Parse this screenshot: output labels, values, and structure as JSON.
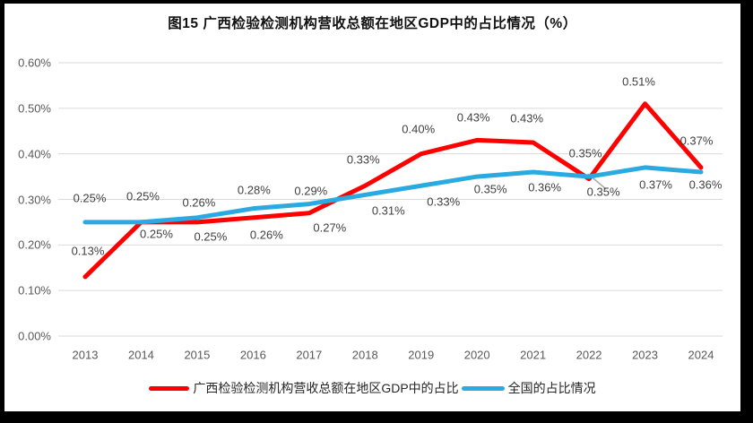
{
  "figure_title": "图15 广西检验检测机构营收总额在地区GDP中的占比情况（%）",
  "chart_data": {
    "type": "line",
    "title": "图15 广西检验检测机构营收总额在地区GDP中的占比情况（%）",
    "categories": [
      "2013",
      "2014",
      "2015",
      "2016",
      "2017",
      "2018",
      "2019",
      "2020",
      "2021",
      "2022",
      "2023",
      "2024"
    ],
    "yticks": [
      "0.00%",
      "0.10%",
      "0.20%",
      "0.30%",
      "0.40%",
      "0.50%",
      "0.60%"
    ],
    "ylim": [
      0,
      0.6
    ],
    "grid": "horizontal",
    "gridline_color": "#DADADA",
    "legend_position": "bottom",
    "series": [
      {
        "id": "guangxi",
        "name": "广西检验检测机构营收总额在地区GDP中的占比",
        "color": "#FF0000",
        "values": [
          0.13,
          0.25,
          0.25,
          0.26,
          0.27,
          0.33,
          0.4,
          0.43,
          0.425,
          0.345,
          0.51,
          0.37
        ],
        "labels": [
          "0.13%",
          "0.25%",
          "0.25%",
          "0.26%",
          "0.27%",
          "0.33%",
          "0.40%",
          "0.43%",
          "0.43%",
          "0.35%",
          "0.51%",
          "0.37%"
        ],
        "label_offsets": [
          [
            3,
            -29
          ],
          [
            17,
            13
          ],
          [
            15,
            16
          ],
          [
            15,
            19
          ],
          [
            23,
            16
          ],
          [
            -2,
            -29
          ],
          [
            -3,
            -28
          ],
          [
            -4,
            -25
          ],
          [
            -7,
            -27
          ],
          [
            -4,
            -29
          ],
          [
            -7,
            -25
          ],
          [
            -5,
            -30
          ]
        ]
      },
      {
        "id": "national",
        "name": "全国的占比情况",
        "color": "#29ABE2",
        "values": [
          0.25,
          0.25,
          0.26,
          0.28,
          0.29,
          0.31,
          0.33,
          0.35,
          0.36,
          0.35,
          0.37,
          0.36
        ],
        "labels": [
          "0.25%",
          "0.25%",
          "0.26%",
          "0.28%",
          "0.29%",
          "0.31%",
          "0.33%",
          "0.35%",
          "0.36%",
          "0.35%",
          "0.37%",
          "0.36%"
        ],
        "label_offsets": [
          [
            5,
            -27
          ],
          [
            2,
            -29
          ],
          [
            2,
            -17
          ],
          [
            1,
            -21
          ],
          [
            2,
            -15
          ],
          [
            26,
            18
          ],
          [
            25,
            18
          ],
          [
            15,
            14
          ],
          [
            13,
            17
          ],
          [
            16,
            17
          ],
          [
            12,
            19
          ],
          [
            5,
            14
          ]
        ]
      }
    ],
    "leader_line": {
      "series_index": 1,
      "point_index": 9,
      "dx": 19,
      "dy": 14,
      "color": "#A6A6A6"
    }
  }
}
